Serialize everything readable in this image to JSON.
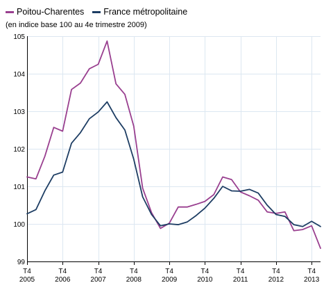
{
  "chart_data": {
    "type": "line",
    "subtitle": "(en indice base 100 au 4e trimestre 2009)",
    "x": [
      "2005T4",
      "2006T1",
      "2006T2",
      "2006T3",
      "2006T4",
      "2007T1",
      "2007T2",
      "2007T3",
      "2007T4",
      "2008T1",
      "2008T2",
      "2008T3",
      "2008T4",
      "2009T1",
      "2009T2",
      "2009T3",
      "2009T4",
      "2010T1",
      "2010T2",
      "2010T3",
      "2010T4",
      "2011T1",
      "2011T2",
      "2011T3",
      "2011T4",
      "2012T1",
      "2012T2",
      "2012T3",
      "2012T4",
      "2013T1",
      "2013T2",
      "2013T3",
      "2013T4",
      "2014T1"
    ],
    "series": [
      {
        "name": "Poitou-Charentes",
        "color": "#993f8f",
        "values": [
          101.25,
          101.2,
          101.8,
          102.57,
          102.47,
          103.58,
          103.75,
          104.13,
          104.25,
          104.87,
          103.73,
          103.45,
          102.6,
          100.95,
          100.3,
          99.88,
          100.02,
          100.45,
          100.45,
          100.52,
          100.6,
          100.78,
          101.25,
          101.18,
          100.85,
          100.75,
          100.63,
          100.32,
          100.28,
          100.32,
          99.82,
          99.85,
          99.95,
          99.35
        ]
      },
      {
        "name": "France métropolitaine",
        "color": "#1d3d63",
        "values": [
          100.27,
          100.38,
          100.88,
          101.3,
          101.38,
          102.15,
          102.43,
          102.8,
          102.98,
          103.25,
          102.83,
          102.5,
          101.72,
          100.72,
          100.25,
          99.95,
          100.0,
          99.98,
          100.05,
          100.22,
          100.42,
          100.68,
          101.0,
          100.88,
          100.87,
          100.92,
          100.82,
          100.5,
          100.25,
          100.2,
          99.98,
          99.93,
          100.07,
          99.93
        ]
      }
    ],
    "yticks": [
      "99",
      "100",
      "101",
      "102",
      "103",
      "104",
      "105"
    ],
    "ylim": [
      99,
      105
    ],
    "xticks": [
      {
        "top": "T4",
        "bottom": "2005",
        "x": "2005T4"
      },
      {
        "top": "T4",
        "bottom": "2006",
        "x": "2006T4"
      },
      {
        "top": "T4",
        "bottom": "2007",
        "x": "2007T4"
      },
      {
        "top": "T4",
        "bottom": "2008",
        "x": "2008T4"
      },
      {
        "top": "T4",
        "bottom": "2009",
        "x": "2009T4"
      },
      {
        "top": "T4",
        "bottom": "2010",
        "x": "2010T4"
      },
      {
        "top": "T4",
        "bottom": "2011",
        "x": "2011T4"
      },
      {
        "top": "T4",
        "bottom": "2012",
        "x": "2012T4"
      },
      {
        "top": "T4",
        "bottom": "2013",
        "x": "2013T4"
      }
    ],
    "grid": true,
    "legend_position": "top-left",
    "colors": {
      "grid": "#dce7f1",
      "axis": "#000000"
    }
  }
}
